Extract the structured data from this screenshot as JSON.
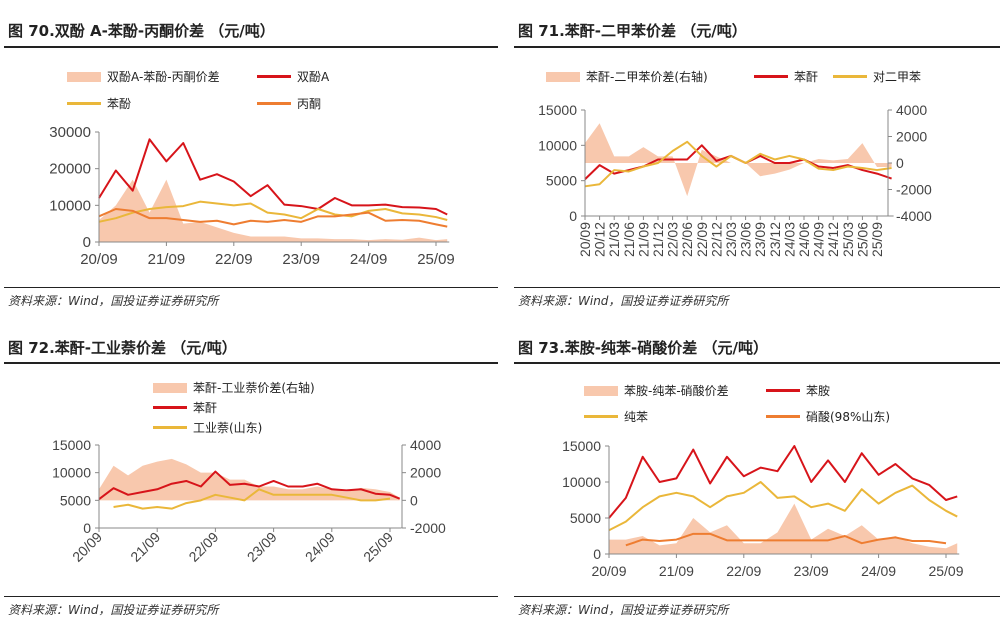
{
  "colors": {
    "spread": "#f8c8ad",
    "red": "#d7141a",
    "yellow": "#eab73a",
    "orange": "#ee7d31"
  },
  "source": "资料来源：Wind，国投证券证券研究所",
  "chart_data": [
    {
      "type": "line",
      "title": "图 70.双酚 A-苯酚-丙酮价差 （元/吨）",
      "xlabel": "",
      "ylabel": "",
      "x": [
        0,
        3,
        6,
        9,
        12,
        15,
        18,
        21,
        24,
        27,
        30,
        33,
        36,
        39,
        42,
        45,
        48,
        51,
        54,
        57,
        60,
        62
      ],
      "x_unit": "months since 2020-09",
      "x_ticks": [
        {
          "v": 0,
          "label": "20/09"
        },
        {
          "v": 12,
          "label": "21/09"
        },
        {
          "v": 24,
          "label": "22/09"
        },
        {
          "v": 36,
          "label": "23/09"
        },
        {
          "v": 48,
          "label": "24/09"
        },
        {
          "v": 60,
          "label": "25/09"
        }
      ],
      "ylim": [
        0,
        30000
      ],
      "y_ticks": [
        "0",
        "10000",
        "20000",
        "30000"
      ],
      "series": [
        {
          "name": "双酚A-苯酚-丙酮价差",
          "kind": "area",
          "axis": "left",
          "color": "spread",
          "values": [
            6000,
            10000,
            17000,
            8000,
            17000,
            5000,
            5500,
            4000,
            2500,
            1500,
            1500,
            1500,
            1000,
            1000,
            800,
            800,
            500,
            800,
            600,
            1200,
            500,
            800
          ]
        },
        {
          "name": "双酚A",
          "kind": "line",
          "axis": "left",
          "color": "red",
          "values": [
            12000,
            19500,
            14000,
            28000,
            22000,
            27000,
            17000,
            18500,
            16500,
            12500,
            15500,
            10200,
            9800,
            9000,
            12000,
            10000,
            10000,
            10200,
            9500,
            9400,
            9000,
            7500
          ]
        },
        {
          "name": "苯酚",
          "kind": "line",
          "axis": "left",
          "color": "yellow",
          "values": [
            5500,
            6500,
            8000,
            9000,
            9500,
            9800,
            11000,
            10500,
            10000,
            10500,
            8000,
            7500,
            6500,
            9000,
            7500,
            7000,
            8500,
            9000,
            7800,
            7500,
            6800,
            6000
          ]
        },
        {
          "name": "丙酮",
          "kind": "line",
          "axis": "left",
          "color": "orange",
          "values": [
            7000,
            9000,
            8500,
            6500,
            6500,
            6000,
            5500,
            5800,
            4800,
            5800,
            5500,
            6000,
            5500,
            7000,
            7000,
            7500,
            8000,
            5800,
            6000,
            5800,
            4800,
            4200
          ]
        }
      ]
    },
    {
      "type": "line",
      "title": "图 71.苯酐-二甲苯价差 （元/吨）",
      "xlabel": "",
      "ylabel": "",
      "x": [
        0,
        3,
        6,
        9,
        12,
        15,
        18,
        21,
        24,
        27,
        30,
        33,
        36,
        39,
        42,
        45,
        48,
        51,
        54,
        57,
        60,
        63
      ],
      "x_unit": "months since 2020-09",
      "x_ticks": [
        {
          "v": 0,
          "label": "20/09"
        },
        {
          "v": 3,
          "label": "20/12"
        },
        {
          "v": 6,
          "label": "21/03"
        },
        {
          "v": 9,
          "label": "21/06"
        },
        {
          "v": 12,
          "label": "21/09"
        },
        {
          "v": 15,
          "label": "21/12"
        },
        {
          "v": 18,
          "label": "22/03"
        },
        {
          "v": 21,
          "label": "22/06"
        },
        {
          "v": 24,
          "label": "22/09"
        },
        {
          "v": 27,
          "label": "22/12"
        },
        {
          "v": 30,
          "label": "23/03"
        },
        {
          "v": 33,
          "label": "23/06"
        },
        {
          "v": 36,
          "label": "23/09"
        },
        {
          "v": 39,
          "label": "23/12"
        },
        {
          "v": 42,
          "label": "24/03"
        },
        {
          "v": 45,
          "label": "24/06"
        },
        {
          "v": 48,
          "label": "24/09"
        },
        {
          "v": 51,
          "label": "24/12"
        },
        {
          "v": 54,
          "label": "25/03"
        },
        {
          "v": 57,
          "label": "25/06"
        },
        {
          "v": 60,
          "label": "25/09"
        }
      ],
      "ylim": [
        0,
        15000
      ],
      "y_ticks": [
        "0",
        "5000",
        "10000",
        "15000"
      ],
      "ylim_right": [
        -4000,
        4000
      ],
      "y_ticks_right": [
        "-4000",
        "-2000",
        "0",
        "2000",
        "4000"
      ],
      "series": [
        {
          "name": "苯酐-二甲苯价差(右轴)",
          "kind": "area",
          "axis": "right",
          "color": "spread",
          "values": [
            1500,
            3000,
            500,
            500,
            1200,
            500,
            500,
            -2500,
            1000,
            500,
            0,
            0,
            -1000,
            -800,
            -500,
            0,
            300,
            200,
            300,
            1500,
            -300,
            -300
          ]
        },
        {
          "name": "苯酐",
          "kind": "line",
          "axis": "left",
          "color": "red",
          "values": [
            5200,
            7200,
            6000,
            6500,
            7000,
            8000,
            8000,
            8000,
            10000,
            7800,
            8500,
            7500,
            8500,
            7500,
            7500,
            8000,
            7000,
            6800,
            7200,
            6500,
            6000,
            5300
          ]
        },
        {
          "name": "对二甲苯",
          "kind": "line",
          "axis": "left",
          "color": "yellow",
          "values": [
            4200,
            4500,
            6500,
            6300,
            7000,
            7500,
            9200,
            10500,
            8500,
            7000,
            8500,
            7500,
            8800,
            8000,
            8500,
            8000,
            6700,
            6500,
            7000,
            6800,
            6500,
            6800
          ]
        }
      ]
    },
    {
      "type": "line",
      "title": "图 72.苯酐-工业萘价差 （元/吨）",
      "xlabel": "",
      "ylabel": "",
      "x": [
        0,
        3,
        6,
        9,
        12,
        15,
        18,
        21,
        24,
        27,
        30,
        33,
        36,
        39,
        42,
        45,
        48,
        51,
        54,
        57,
        60,
        62
      ],
      "x_unit": "months since 2020-09",
      "x_ticks": [
        {
          "v": 0,
          "label": "20/09"
        },
        {
          "v": 12,
          "label": "21/09"
        },
        {
          "v": 24,
          "label": "22/09"
        },
        {
          "v": 36,
          "label": "23/09"
        },
        {
          "v": 48,
          "label": "24/09"
        },
        {
          "v": 60,
          "label": "25/09"
        }
      ],
      "ylim": [
        0,
        15000
      ],
      "y_ticks": [
        "0",
        "5000",
        "10000",
        "15000"
      ],
      "ylim_right": [
        -2000,
        4000
      ],
      "y_ticks_right": [
        "-2000",
        "0",
        "2000",
        "4000"
      ],
      "series": [
        {
          "name": "苯酐-工业萘价差(右轴)",
          "kind": "area",
          "axis": "right",
          "color": "spread",
          "values": [
            800,
            2500,
            1800,
            2500,
            2800,
            3000,
            2600,
            2000,
            2000,
            1500,
            1500,
            1000,
            1000,
            800,
            800,
            1000,
            800,
            600,
            900,
            800,
            600,
            200
          ]
        },
        {
          "name": "苯酐",
          "kind": "line",
          "axis": "left",
          "color": "red",
          "values": [
            5200,
            7200,
            6000,
            6500,
            7000,
            8000,
            8500,
            7500,
            10200,
            7800,
            8000,
            7500,
            8500,
            7500,
            7500,
            8000,
            7000,
            6800,
            7000,
            6200,
            6000,
            5300
          ]
        },
        {
          "name": "工业萘(山东)",
          "kind": "line",
          "axis": "left",
          "color": "yellow",
          "values": [
            null,
            3800,
            4200,
            3500,
            3800,
            3500,
            4500,
            5000,
            6000,
            5500,
            5000,
            7000,
            6000,
            6000,
            6000,
            6000,
            6000,
            5500,
            5000,
            5000,
            5300,
            null
          ]
        }
      ]
    },
    {
      "type": "line",
      "title": "图 73.苯胺-纯苯-硝酸价差 （元/吨）",
      "xlabel": "",
      "ylabel": "",
      "x": [
        0,
        3,
        6,
        9,
        12,
        15,
        18,
        21,
        24,
        27,
        30,
        33,
        36,
        39,
        42,
        45,
        48,
        51,
        54,
        57,
        60,
        62
      ],
      "x_unit": "months since 2020-09",
      "x_ticks": [
        {
          "v": 0,
          "label": "20/09"
        },
        {
          "v": 12,
          "label": "21/09"
        },
        {
          "v": 24,
          "label": "22/09"
        },
        {
          "v": 36,
          "label": "23/09"
        },
        {
          "v": 48,
          "label": "24/09"
        },
        {
          "v": 60,
          "label": "25/09"
        }
      ],
      "ylim": [
        0,
        15000
      ],
      "y_ticks": [
        "0",
        "5000",
        "10000",
        "15000"
      ],
      "series": [
        {
          "name": "苯胺-纯苯-硝酸价差",
          "kind": "area",
          "axis": "left",
          "color": "spread",
          "values": [
            2000,
            2000,
            2500,
            1200,
            1500,
            5000,
            3000,
            4000,
            1500,
            1500,
            3000,
            7000,
            2000,
            3500,
            2500,
            4000,
            2000,
            2500,
            1500,
            1000,
            800,
            1500
          ]
        },
        {
          "name": "苯胺",
          "kind": "line",
          "axis": "left",
          "color": "red",
          "values": [
            5000,
            7800,
            13500,
            10000,
            10500,
            14500,
            9800,
            13500,
            10800,
            12000,
            11500,
            15000,
            10000,
            13000,
            10000,
            14000,
            11000,
            12500,
            10500,
            9600,
            7500,
            8000
          ]
        },
        {
          "name": "纯苯",
          "kind": "line",
          "axis": "left",
          "color": "yellow",
          "values": [
            3300,
            4500,
            6500,
            8000,
            8500,
            8000,
            6500,
            8000,
            8500,
            10000,
            7800,
            8000,
            6500,
            7000,
            6000,
            9000,
            7000,
            8500,
            9500,
            7500,
            6000,
            5200
          ]
        },
        {
          "name": "硝酸(98%山东)",
          "kind": "line",
          "axis": "left",
          "color": "orange",
          "values": [
            null,
            1200,
            2000,
            1800,
            2000,
            2800,
            2800,
            1900,
            1900,
            1900,
            1900,
            1900,
            1900,
            1900,
            2500,
            1500,
            2000,
            2300,
            1800,
            1800,
            1500,
            null
          ]
        }
      ]
    }
  ]
}
